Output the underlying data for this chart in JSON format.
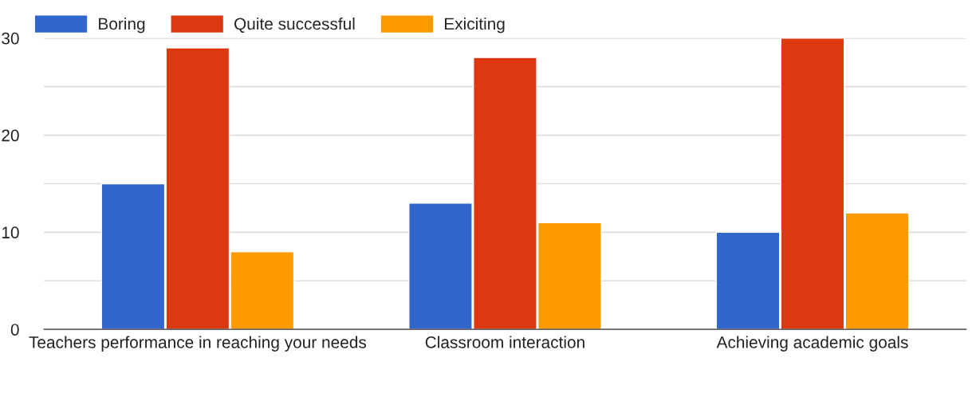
{
  "chart_data": {
    "type": "bar",
    "categories": [
      "Teachers performance in reaching your needs",
      "Classroom interaction",
      "Achieving academic goals"
    ],
    "series": [
      {
        "name": "Boring",
        "color": "#3366cc",
        "values": [
          15,
          13,
          10
        ]
      },
      {
        "name": "Quite successful",
        "color": "#dc3912",
        "values": [
          29,
          28,
          30
        ]
      },
      {
        "name": "Exiciting",
        "color": "#ff9900",
        "values": [
          8,
          11,
          12
        ]
      }
    ],
    "ylim": [
      0,
      30
    ],
    "yticks": [
      0,
      {
        "value": 5,
        "label": null
      },
      10,
      {
        "value": 15,
        "label": null
      },
      20,
      {
        "value": 25,
        "label": null
      },
      30
    ],
    "grid": "y",
    "legend": "top left"
  }
}
